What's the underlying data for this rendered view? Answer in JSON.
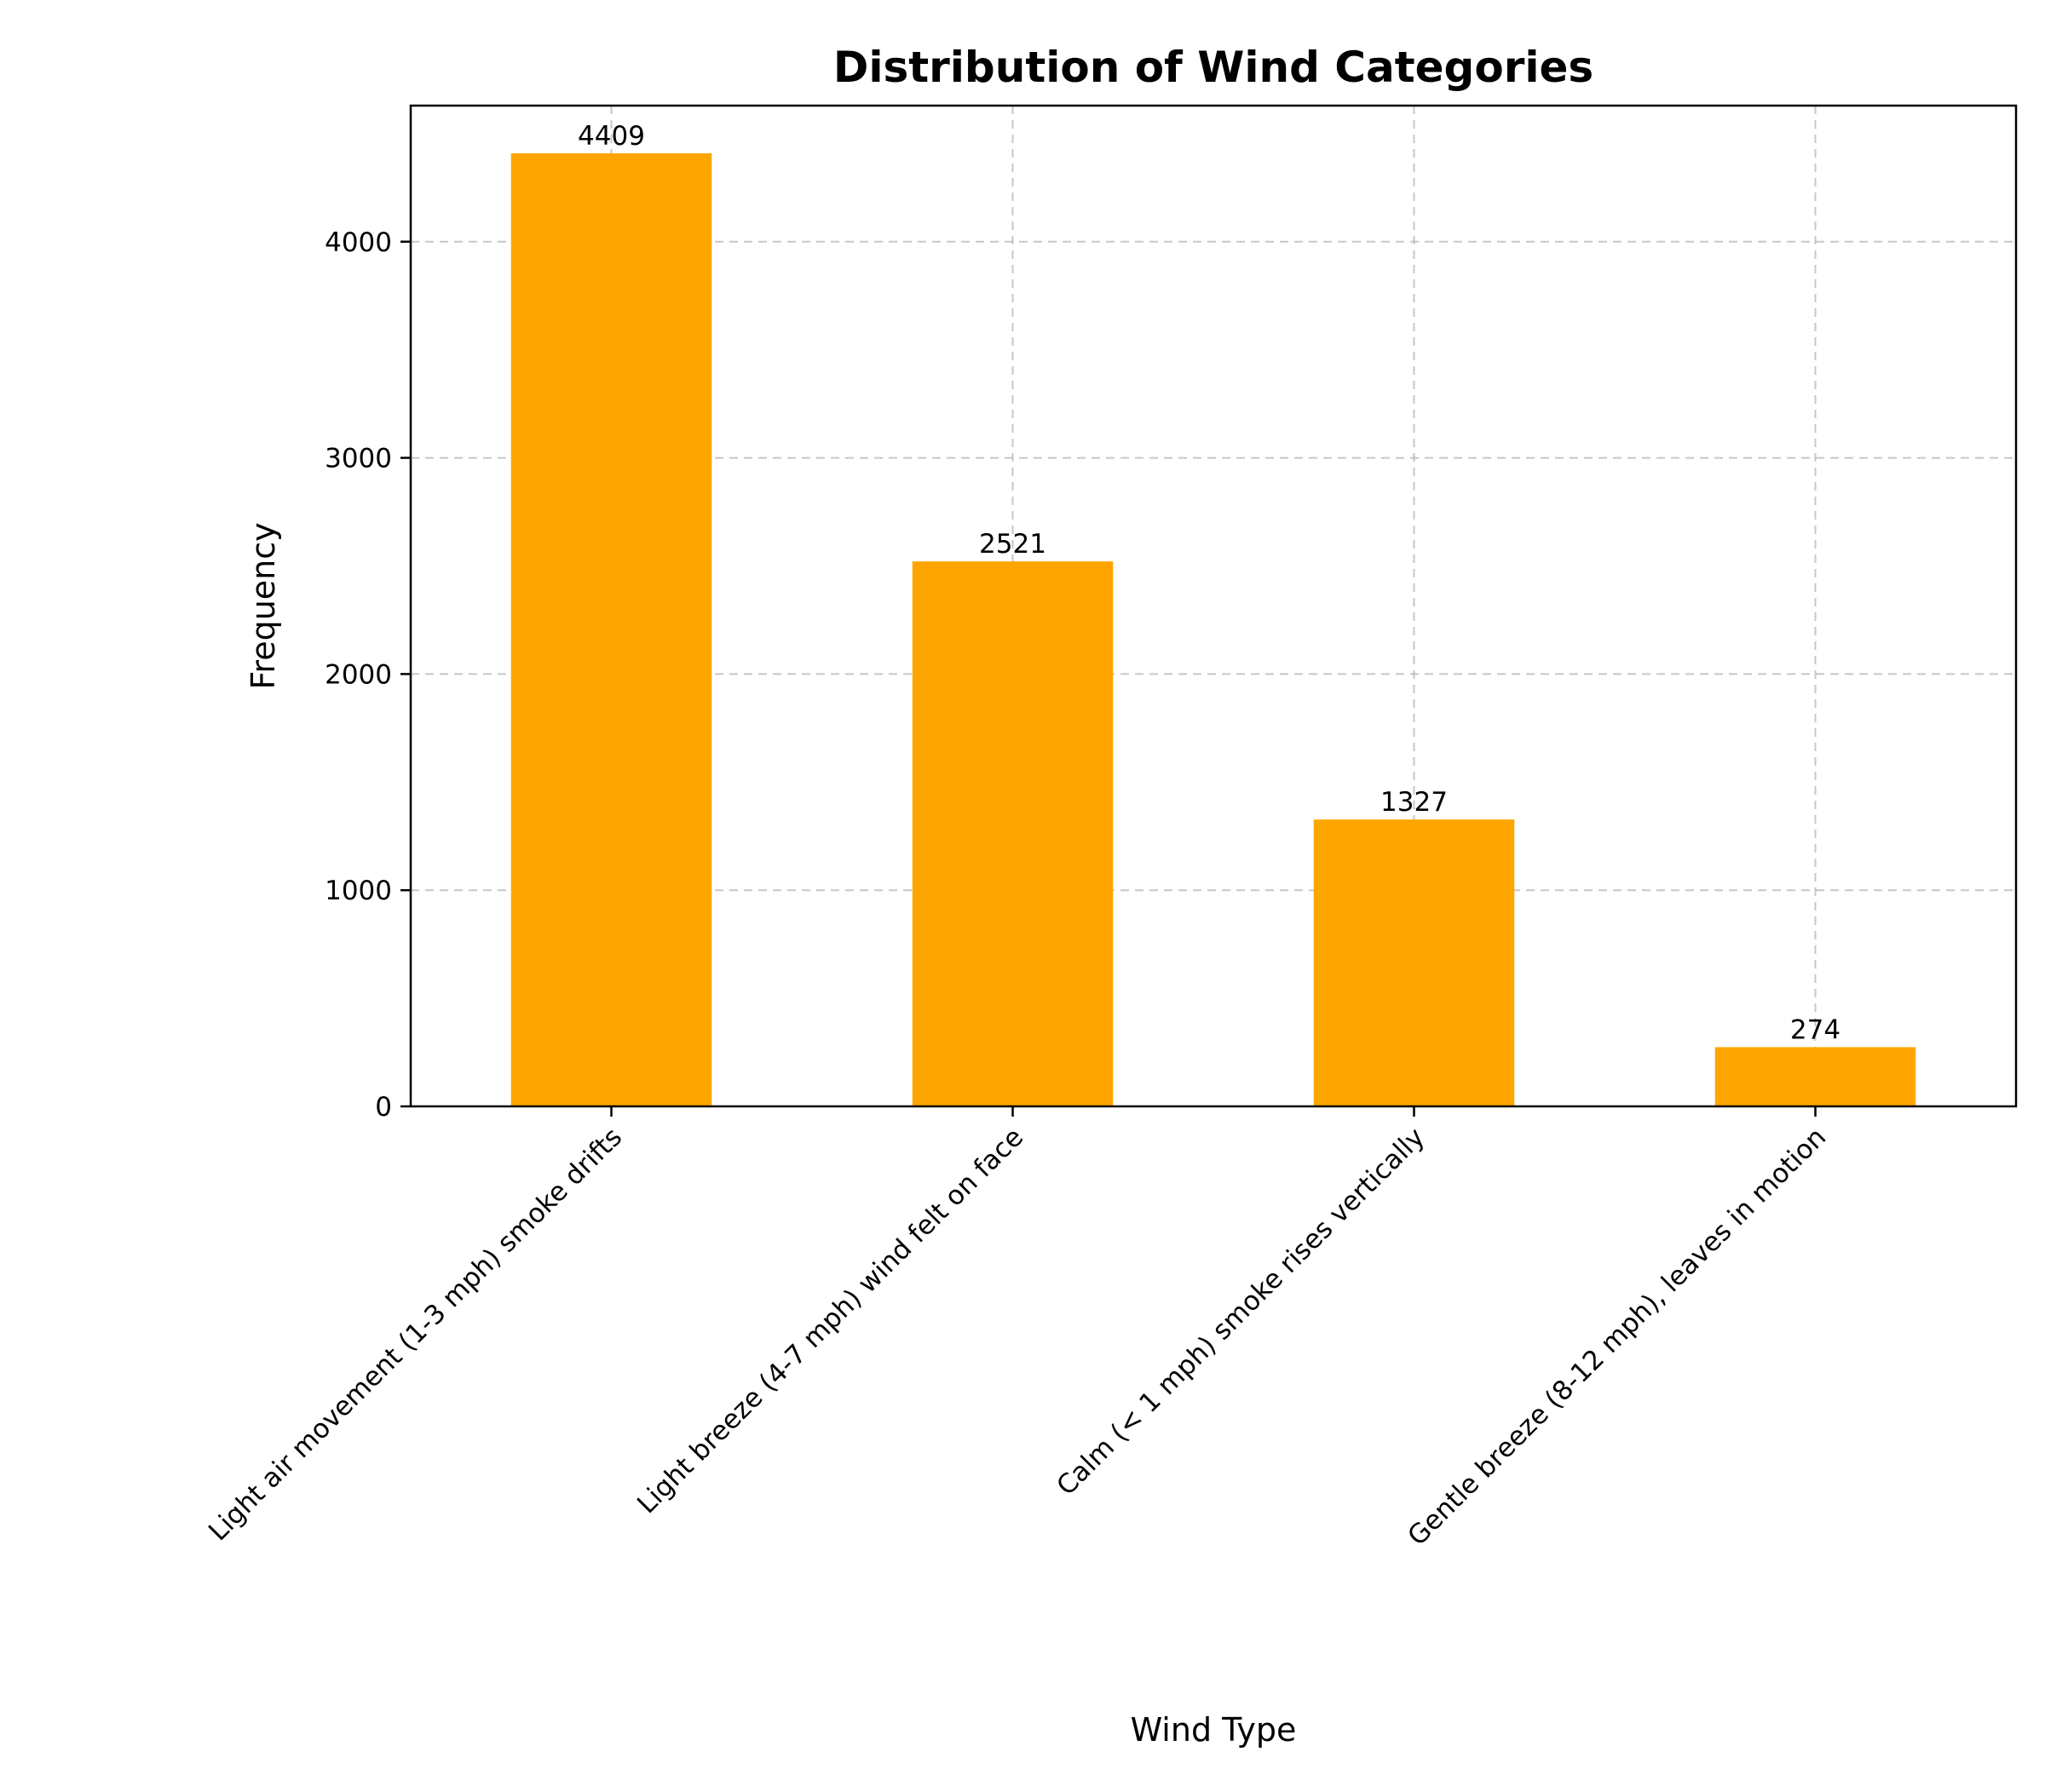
{
  "chart_data": {
    "type": "bar",
    "title": "Distribution of Wind Categories",
    "xlabel": "Wind Type",
    "ylabel": "Frequency",
    "categories": [
      "Light air movement (1-3 mph) smoke drifts",
      "Light breeze (4-7 mph) wind felt on face",
      "Calm (< 1 mph) smoke rises vertically",
      "Gentle breeze (8-12 mph), leaves in motion"
    ],
    "values": [
      4409,
      2521,
      1327,
      274
    ],
    "data_labels": [
      "4409",
      "2521",
      "1327",
      "274"
    ],
    "yticks": [
      0,
      1000,
      2000,
      3000,
      4000
    ],
    "ytick_labels": [
      "0",
      "1000",
      "2000",
      "3000",
      "4000"
    ],
    "ylim": [
      0,
      4629.45
    ],
    "grid": true,
    "legend": "none",
    "colors": {
      "bar": "#ffa500",
      "grid": "#b0b0b0",
      "axis": "#000000"
    }
  }
}
